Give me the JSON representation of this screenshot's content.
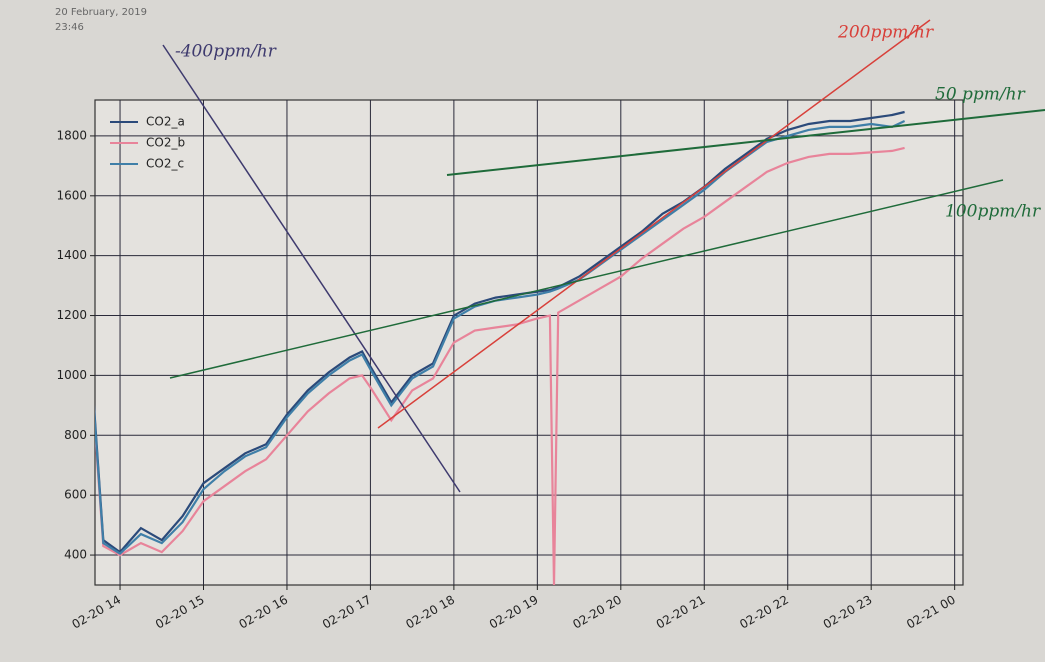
{
  "header": {
    "date": "20 February, 2019",
    "time": "23:46"
  },
  "chart_data": {
    "type": "line",
    "annotations": [
      "-400ppm/hr",
      "200ppm/hr",
      "50 ppm/hr",
      "100ppm/hr"
    ],
    "x": [
      13.6,
      13.8,
      14.0,
      14.25,
      14.5,
      14.75,
      15.0,
      15.25,
      15.5,
      15.75,
      16.0,
      16.25,
      16.5,
      16.75,
      16.9,
      17.0,
      17.25,
      17.5,
      17.75,
      18.0,
      18.25,
      18.5,
      18.75,
      19.0,
      19.15,
      19.2,
      19.25,
      19.5,
      19.75,
      20.0,
      20.25,
      20.5,
      20.75,
      21.0,
      21.25,
      21.5,
      21.75,
      22.0,
      22.25,
      22.5,
      22.75,
      23.0,
      23.25,
      23.4
    ],
    "series": [
      {
        "name": "CO2_a",
        "color": "#2b4a7a",
        "values": [
          1250,
          450,
          410,
          490,
          450,
          530,
          640,
          690,
          740,
          770,
          870,
          950,
          1010,
          1060,
          1080,
          1030,
          910,
          1000,
          1040,
          1200,
          1240,
          1260,
          1270,
          1280,
          1285,
          1290,
          1295,
          1330,
          1380,
          1430,
          1480,
          1540,
          1580,
          1630,
          1690,
          1740,
          1790,
          1820,
          1840,
          1850,
          1850,
          1860,
          1870,
          1880
        ]
      },
      {
        "name": "CO2_b",
        "color": "#e8849a",
        "values": [
          1200,
          430,
          400,
          440,
          410,
          480,
          580,
          630,
          680,
          720,
          800,
          880,
          940,
          990,
          1000,
          960,
          850,
          950,
          990,
          1110,
          1150,
          1160,
          1170,
          1190,
          1200,
          300,
          1210,
          1250,
          1290,
          1330,
          1390,
          1440,
          1490,
          1530,
          1580,
          1630,
          1680,
          1710,
          1730,
          1740,
          1740,
          1745,
          1750,
          1760
        ]
      },
      {
        "name": "CO2_c",
        "color": "#3f7fa8",
        "values": [
          1230,
          440,
          405,
          470,
          440,
          510,
          620,
          680,
          730,
          760,
          860,
          940,
          1000,
          1050,
          1070,
          1020,
          900,
          990,
          1030,
          1190,
          1230,
          1250,
          1260,
          1270,
          1280,
          1285,
          1290,
          1320,
          1370,
          1420,
          1470,
          1520,
          1570,
          1620,
          1680,
          1730,
          1780,
          1800,
          1820,
          1830,
          1830,
          1840,
          1830,
          1850
        ]
      }
    ],
    "xlim": [
      13.7,
      24.1
    ],
    "ylim": [
      300,
      1920
    ],
    "xticks": [
      {
        "value": 14,
        "label": "02-20 14"
      },
      {
        "value": 15,
        "label": "02-20 15"
      },
      {
        "value": 16,
        "label": "02-20 16"
      },
      {
        "value": 17,
        "label": "02-20 17"
      },
      {
        "value": 18,
        "label": "02-20 18"
      },
      {
        "value": 19,
        "label": "02-20 19"
      },
      {
        "value": 20,
        "label": "02-20 20"
      },
      {
        "value": 21,
        "label": "02-20 21"
      },
      {
        "value": 22,
        "label": "02-20 22"
      },
      {
        "value": 23,
        "label": "02-20 23"
      },
      {
        "value": 24,
        "label": "02-21 00"
      }
    ],
    "yticks": [
      400,
      600,
      800,
      1000,
      1200,
      1400,
      1600,
      1800
    ],
    "grid": true,
    "legend": "upper left"
  }
}
